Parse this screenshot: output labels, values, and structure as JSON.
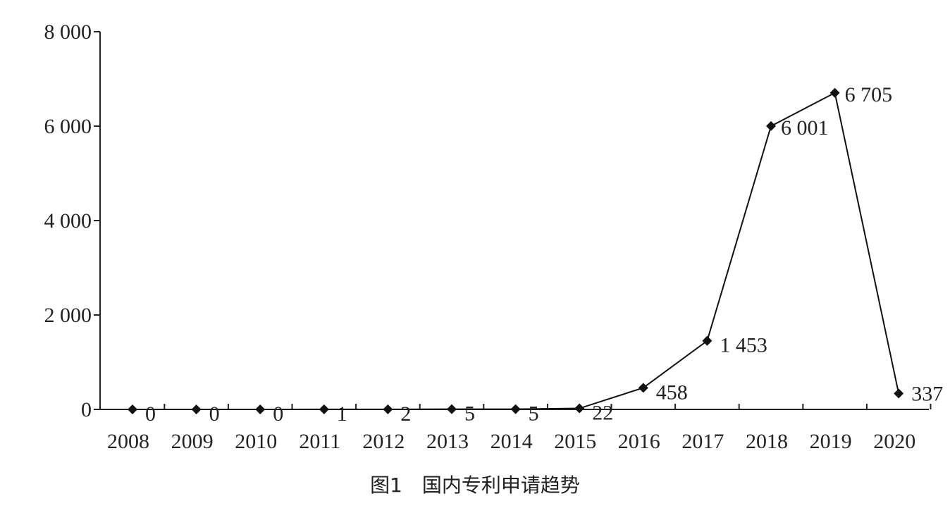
{
  "caption": "图1　国内专利申请趋势",
  "chart_data": {
    "type": "line",
    "title": "",
    "xlabel": "",
    "ylabel": "",
    "categories": [
      "2008",
      "2009",
      "2010",
      "2011",
      "2012",
      "2013",
      "2014",
      "2015",
      "2016",
      "2017",
      "2018",
      "2019",
      "2020"
    ],
    "values": [
      0,
      0,
      0,
      1,
      2,
      5,
      5,
      22,
      458,
      1453,
      6001,
      6705,
      337
    ],
    "data_labels": [
      "0",
      "0",
      "0",
      "1",
      "2",
      "5",
      "5",
      "22",
      "458",
      "1 453",
      "6 001",
      "6 705",
      "337"
    ],
    "yticks": [
      0,
      2000,
      4000,
      6000,
      8000
    ],
    "ytick_labels": [
      "0",
      "2 000",
      "4 000",
      "6 000",
      "8 000"
    ],
    "ylim": [
      0,
      8000
    ],
    "grid": false,
    "legend": "none",
    "marker": "diamond",
    "line_color": "#111111"
  }
}
